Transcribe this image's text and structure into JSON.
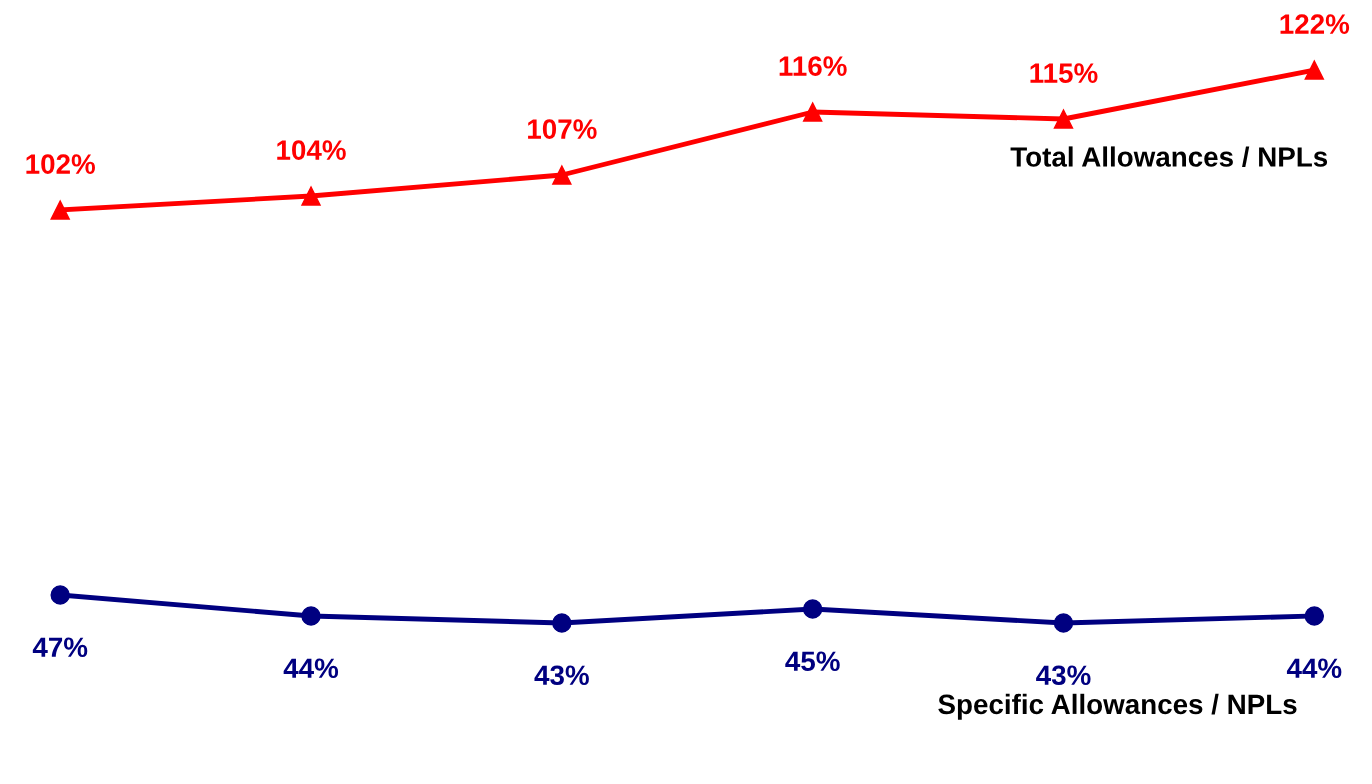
{
  "chart_data": {
    "type": "line",
    "categories": [
      null,
      null,
      null,
      null,
      null,
      null
    ],
    "ylim": [
      20,
      132
    ],
    "grid": false,
    "legend": false,
    "series": [
      {
        "name": "Total Allowances / NPLs",
        "color": "#ff0000",
        "marker": "triangle",
        "values": [
          102,
          104,
          107,
          116,
          115,
          122
        ],
        "value_labels": [
          "102%",
          "104%",
          "107%",
          "116%",
          "115%",
          "122%"
        ]
      },
      {
        "name": "Specific Allowances / NPLs",
        "color": "#000080",
        "marker": "circle",
        "values": [
          47,
          44,
          43,
          45,
          43,
          44
        ],
        "value_labels": [
          "47%",
          "44%",
          "43%",
          "45%",
          "43%",
          "44%"
        ]
      }
    ]
  }
}
